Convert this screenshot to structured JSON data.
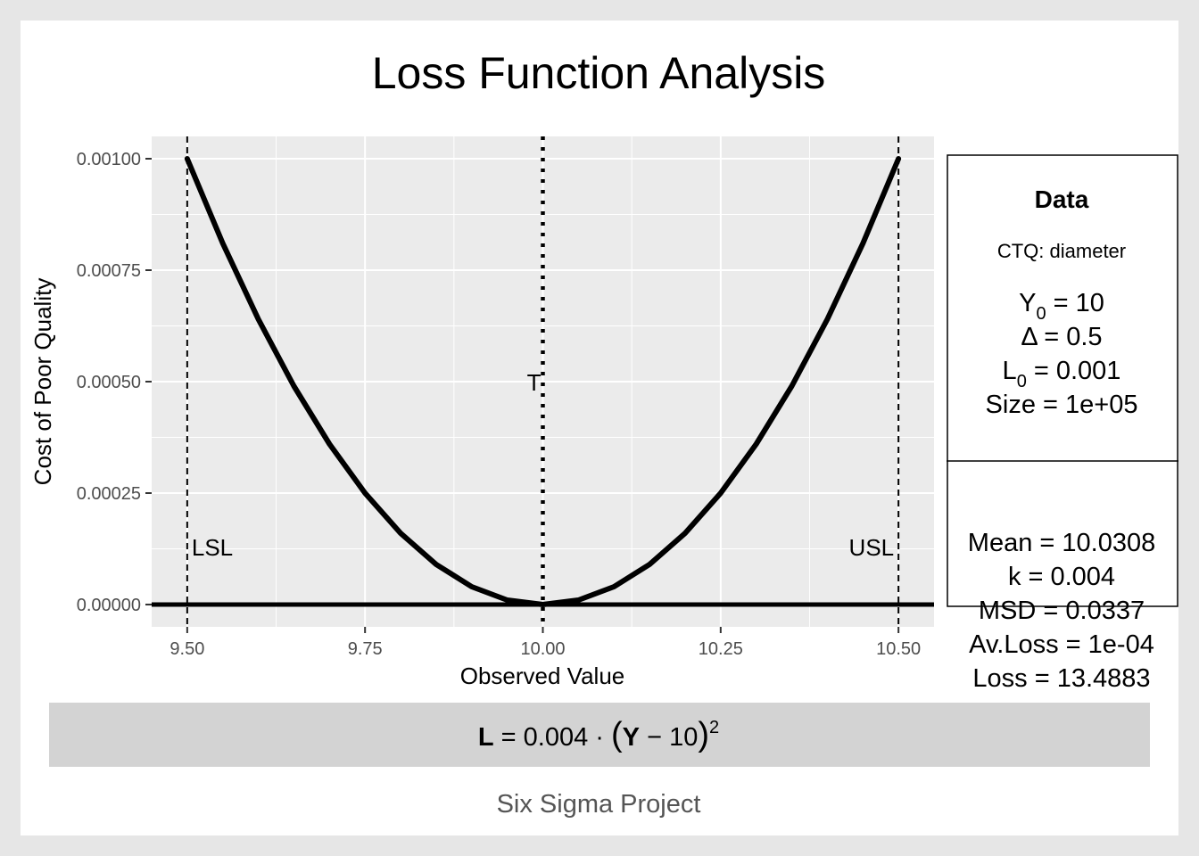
{
  "chart_data": {
    "type": "line",
    "title": "Loss Function Analysis",
    "xlabel": "Observed Value",
    "ylabel": "Cost of Poor Quality",
    "xlim": [
      9.45,
      10.55
    ],
    "ylim": [
      -5e-05,
      0.00105
    ],
    "x_ticks": [
      "9.50",
      "9.75",
      "10.00",
      "10.25",
      "10.50"
    ],
    "y_ticks": [
      "0.00000",
      "0.00025",
      "0.00050",
      "0.00075",
      "0.00100"
    ],
    "grid": true,
    "series": [
      {
        "x": [
          9.5,
          9.55,
          9.6,
          9.65,
          9.7,
          9.75,
          9.8,
          9.85,
          9.9,
          9.95,
          10.0,
          10.05,
          10.1,
          10.15,
          10.2,
          10.25,
          10.3,
          10.35,
          10.4,
          10.45,
          10.5
        ],
        "y": [
          0.001,
          0.00081,
          0.00064,
          0.00049,
          0.00036,
          0.00025,
          0.00016,
          9e-05,
          4e-05,
          1e-05,
          0.0,
          1e-05,
          4e-05,
          9e-05,
          0.00016,
          0.00025,
          0.00036,
          0.00049,
          0.00064,
          0.00081,
          0.001
        ]
      }
    ],
    "reference_lines": [
      {
        "label": "LSL",
        "x": 9.5,
        "style": "dashed"
      },
      {
        "label": "T",
        "x": 10.0,
        "style": "dotted"
      },
      {
        "label": "USL",
        "x": 10.5,
        "style": "dashed"
      }
    ],
    "hline": {
      "y": 0.0
    }
  },
  "panel": {
    "header": "Data",
    "ctq": "CTQ: diameter",
    "y0": {
      "sym": "Y",
      "sub": "0",
      "rest": " = 10"
    },
    "delta": "Δ = 0.5",
    "l0": {
      "sym": "L",
      "sub": "0",
      "rest": " = 0.001"
    },
    "size": "Size = 1e+05",
    "mean": "Mean = 10.0308",
    "k": "k = 0.004",
    "msd": "MSD = 0.0337",
    "avloss": "Av.Loss = 1e-04",
    "loss": "Loss = 13.4883"
  },
  "formula": {
    "L": "L",
    "eq": " = 0.004 · ",
    "Y": "Y",
    "minus": " − 10",
    "exp": "2"
  },
  "caption": "Six Sigma Project"
}
